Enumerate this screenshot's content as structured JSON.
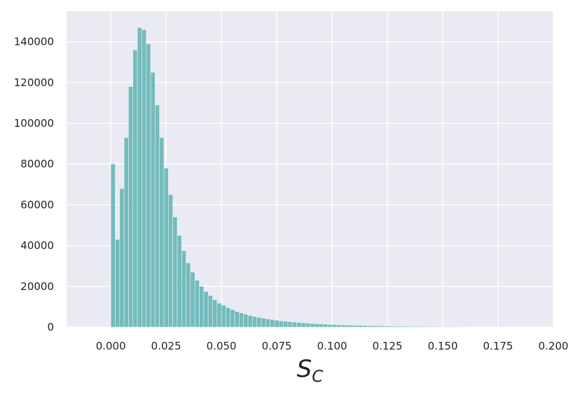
{
  "chart_data": {
    "type": "bar",
    "title": "",
    "xlabel": {
      "base": "S",
      "sub": "C"
    },
    "ylabel": "",
    "xlim": [
      -0.02,
      0.2
    ],
    "ylim": [
      0,
      155000
    ],
    "grid": true,
    "colors": {
      "bar": "#5fb3b3",
      "bar_edge": "#e6f3f3",
      "plot_bg": "#eaeaf2",
      "grid": "#ffffff"
    },
    "bin_start": 0.0,
    "bin_width": 0.002,
    "values": [
      80000,
      43000,
      68000,
      93000,
      118000,
      136000,
      147000,
      146000,
      139000,
      125000,
      109000,
      93000,
      78000,
      65000,
      54000,
      45000,
      37500,
      31500,
      27000,
      23000,
      20000,
      17500,
      15500,
      13500,
      11800,
      10800,
      9600,
      8600,
      7700,
      7000,
      6300,
      5700,
      5200,
      4800,
      4400,
      4000,
      3700,
      3400,
      3100,
      2900,
      2700,
      2500,
      2300,
      2100,
      1950,
      1800,
      1650,
      1550,
      1450,
      1350,
      1250,
      1150,
      1070,
      1000,
      930,
      870,
      810,
      760,
      710,
      660,
      620,
      580,
      540,
      500,
      470,
      440,
      410,
      380,
      360,
      340,
      320,
      300,
      280,
      260,
      245,
      230,
      215,
      200,
      190,
      180
    ],
    "xticks": [
      {
        "value": 0.0,
        "label": "0.000"
      },
      {
        "value": 0.025,
        "label": "0.025"
      },
      {
        "value": 0.05,
        "label": "0.050"
      },
      {
        "value": 0.075,
        "label": "0.075"
      },
      {
        "value": 0.1,
        "label": "0.100"
      },
      {
        "value": 0.125,
        "label": "0.125"
      },
      {
        "value": 0.15,
        "label": "0.150"
      },
      {
        "value": 0.175,
        "label": "0.175"
      },
      {
        "value": 0.2,
        "label": "0.200"
      }
    ],
    "yticks": [
      {
        "value": 0,
        "label": "0"
      },
      {
        "value": 20000,
        "label": "20000"
      },
      {
        "value": 40000,
        "label": "40000"
      },
      {
        "value": 60000,
        "label": "60000"
      },
      {
        "value": 80000,
        "label": "80000"
      },
      {
        "value": 100000,
        "label": "100000"
      },
      {
        "value": 120000,
        "label": "120000"
      },
      {
        "value": 140000,
        "label": "140000"
      }
    ]
  }
}
